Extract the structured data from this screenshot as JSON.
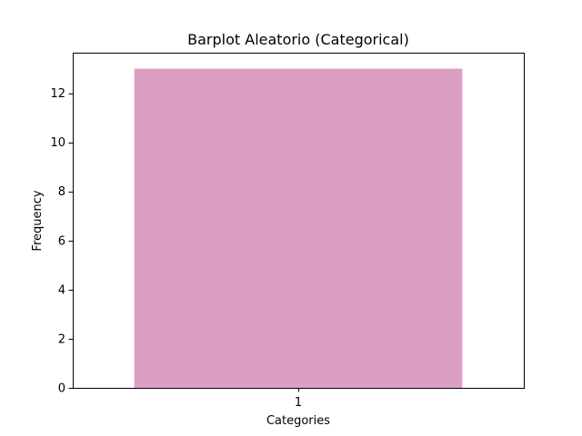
{
  "chart_data": {
    "type": "bar",
    "title": "Barplot Aleatorio (Categorical)",
    "xlabel": "Categories",
    "ylabel": "Frequency",
    "categories": [
      "1"
    ],
    "values": [
      13
    ],
    "ylim": [
      0,
      13.65
    ],
    "yticks": [
      0,
      2,
      4,
      6,
      8,
      10,
      12
    ],
    "bar_color": "#DB9FC4",
    "grid": false,
    "legend": "none"
  }
}
